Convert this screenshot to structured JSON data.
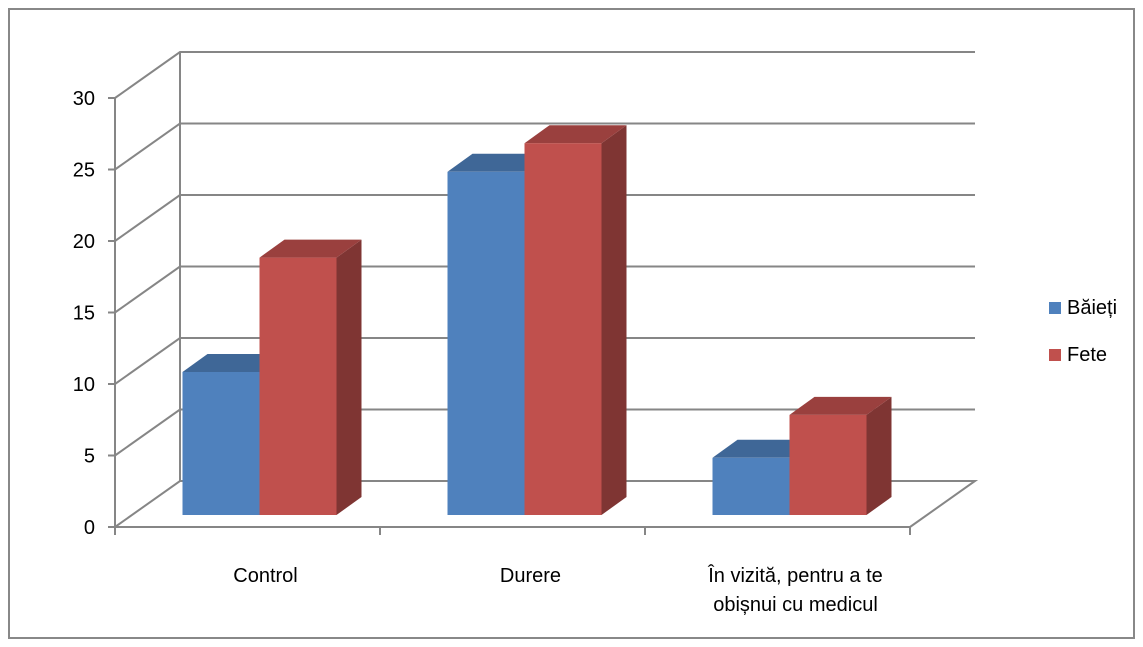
{
  "chart_data": {
    "type": "bar",
    "categories": [
      "Control",
      "Durere",
      "În vizită, pentru a te obișnui cu medicul"
    ],
    "category_lines": [
      [
        "Control"
      ],
      [
        "Durere"
      ],
      [
        "În vizită, pentru a te",
        "obișnui cu medicul"
      ]
    ],
    "series": [
      {
        "name": "Băieți",
        "values": [
          10,
          24,
          4
        ],
        "color": "#4F81BD"
      },
      {
        "name": "Fete",
        "values": [
          18,
          26,
          7
        ],
        "color": "#C0504D"
      }
    ],
    "ylim": [
      0,
      30
    ],
    "yticks": [
      0,
      5,
      10,
      15,
      20,
      25,
      30
    ],
    "grid": true,
    "legend": "right",
    "style": "3d-clustered-column"
  }
}
